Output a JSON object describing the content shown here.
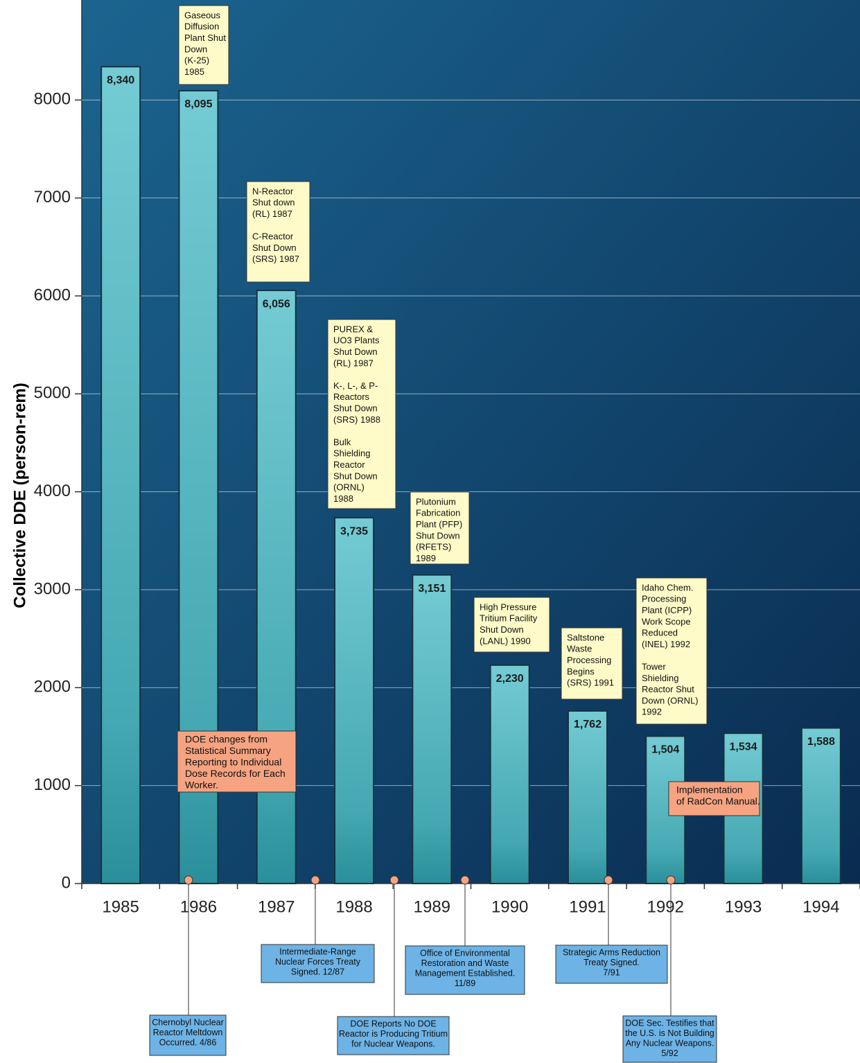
{
  "chart_data": {
    "type": "bar",
    "ylabel": "Collective DDE (person-rem)",
    "categories": [
      "1985",
      "1986",
      "1987",
      "1988",
      "1989",
      "1990",
      "1991",
      "1992",
      "1993",
      "1994"
    ],
    "values": [
      8340,
      8095,
      6056,
      3735,
      3151,
      2230,
      1762,
      1504,
      1534,
      1588
    ],
    "value_labels": [
      "8,340",
      "8,095",
      "6,056",
      "3,735",
      "3,151",
      "2,230",
      "1,762",
      "1,504",
      "1,534",
      "1,588"
    ],
    "color": "#5bbcc6",
    "ylim": [
      0,
      9000
    ],
    "yticks": [
      0,
      1000,
      2000,
      3000,
      4000,
      5000,
      6000,
      7000,
      8000
    ],
    "grid": true,
    "notes": [
      {
        "paragraphs": [
          [
            "Gaseous",
            "Diffusion",
            "Plant Shut",
            "Down",
            "(K-25)",
            "1985"
          ]
        ]
      },
      {
        "paragraphs": [
          [
            "N-Reactor",
            "Shut down",
            "(RL) 1987"
          ],
          [
            "C-Reactor",
            "Shut Down",
            "(SRS) 1987"
          ]
        ]
      },
      {
        "paragraphs": [
          [
            "PUREX &",
            "UO3 Plants",
            "Shut Down",
            "(RL) 1987"
          ],
          [
            "K-, L-, & P-",
            "Reactors",
            "Shut Down",
            "(SRS) 1988"
          ],
          [
            "Bulk",
            "Shielding",
            "Reactor",
            "Shut Down",
            "(ORNL)",
            "1988"
          ]
        ]
      },
      {
        "paragraphs": [
          [
            "Plutonium",
            "Fabrication",
            "Plant (PFP)",
            "Shut Down",
            "(RFETS)",
            "1989"
          ]
        ]
      },
      {
        "paragraphs": [
          [
            "High Pressure",
            "Tritium Facility",
            "Shut Down",
            "(LANL) 1990"
          ]
        ]
      },
      {
        "paragraphs": [
          [
            "Saltstone",
            "Waste",
            "Processing",
            "Begins",
            "(SRS) 1991"
          ]
        ]
      },
      {
        "paragraphs": [
          [
            "Idaho Chem.",
            "Processing",
            "Plant (ICPP)",
            "Work Scope",
            "Reduced",
            "(INEL) 1992"
          ],
          [
            "Tower",
            "Shielding",
            "Reactor Shut",
            "Down (ORNL)",
            "1992"
          ]
        ]
      }
    ],
    "highlights": [
      {
        "lines": [
          "DOE changes from",
          "Statistical Summary",
          "Reporting to Individual",
          "Dose Records for Each",
          "Worker."
        ]
      },
      {
        "lines": [
          "Implementation",
          "of RadCon Manual."
        ]
      }
    ],
    "events": [
      {
        "lines": [
          "Chernobyl Nuclear",
          "Reactor Meltdown",
          "Occurred. 4/86"
        ]
      },
      {
        "lines": [
          "Intermediate-Range",
          "Nuclear Forces Treaty",
          "Signed. 12/87"
        ]
      },
      {
        "lines": [
          "DOE Reports No DOE",
          "Reactor is Producing Tritium",
          "for Nuclear Weapons."
        ]
      },
      {
        "lines": [
          "Office of Environmental",
          "Restoration and Waste",
          "Management Established.",
          "11/89"
        ]
      },
      {
        "lines": [
          "Strategic Arms Reduction",
          "Treaty Signed.",
          "7/91"
        ]
      },
      {
        "lines": [
          "DOE Sec. Testifies that",
          "the U.S. is Not Building",
          "Any Nuclear Weapons.",
          "5/92"
        ]
      }
    ]
  }
}
